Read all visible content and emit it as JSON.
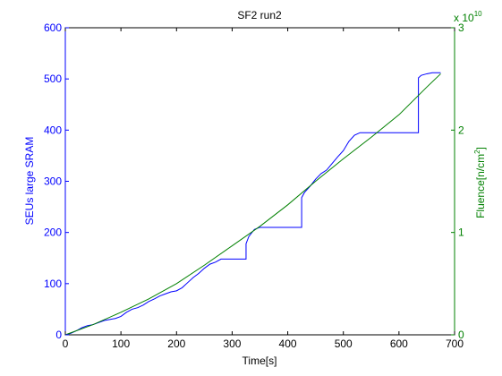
{
  "chart_data": {
    "type": "line",
    "title": "SF2 run2",
    "xlabel": "Time[s]",
    "ylabel": "SEUs large SRAM",
    "y2label_main": "Fluence[n/cm",
    "y2label_sup": "2",
    "y2label_end": "]",
    "y2_multiplier_base": "x 10",
    "y2_multiplier_exp": "10",
    "xlim": [
      0,
      700
    ],
    "ylim": [
      0,
      600
    ],
    "y2lim": [
      0,
      3
    ],
    "x_ticks": [
      0,
      100,
      200,
      300,
      400,
      500,
      600,
      700
    ],
    "x_tick_labels": [
      "0",
      "100",
      "200",
      "300",
      "400",
      "500",
      "600",
      "700"
    ],
    "y_ticks": [
      0,
      100,
      200,
      300,
      400,
      500,
      600
    ],
    "y_tick_labels": [
      "0",
      "100",
      "200",
      "300",
      "400",
      "500",
      "600"
    ],
    "y2_ticks": [
      0,
      1,
      2,
      3
    ],
    "y2_tick_labels": [
      "0",
      "1",
      "2",
      "3"
    ],
    "colors": {
      "left_axis": "#0000ff",
      "right_axis": "#008000",
      "box": "#000000"
    },
    "series": [
      {
        "name": "SEUs large SRAM",
        "axis": "left",
        "color": "#0000ff",
        "x": [
          0,
          10,
          20,
          30,
          40,
          50,
          60,
          70,
          80,
          90,
          100,
          110,
          120,
          130,
          140,
          150,
          160,
          170,
          180,
          190,
          200,
          210,
          220,
          230,
          240,
          250,
          260,
          270,
          280,
          290,
          300,
          310,
          320,
          325,
          325,
          330,
          340,
          350,
          360,
          370,
          380,
          390,
          400,
          410,
          420,
          425,
          425,
          430,
          440,
          450,
          460,
          470,
          480,
          490,
          500,
          510,
          520,
          530,
          540,
          550,
          560,
          570,
          580,
          590,
          600,
          610,
          620,
          630,
          635,
          635,
          640,
          650,
          660,
          670,
          675
        ],
        "y": [
          0,
          3,
          8,
          14,
          18,
          20,
          24,
          28,
          30,
          32,
          36,
          44,
          50,
          53,
          58,
          65,
          70,
          76,
          80,
          84,
          86,
          92,
          102,
          112,
          120,
          130,
          138,
          142,
          148,
          148,
          148,
          148,
          148,
          148,
          178,
          192,
          206,
          210,
          210,
          210,
          210,
          210,
          210,
          210,
          210,
          210,
          268,
          278,
          290,
          304,
          315,
          322,
          335,
          348,
          360,
          378,
          390,
          395,
          395,
          395,
          395,
          395,
          395,
          395,
          395,
          395,
          395,
          395,
          395,
          502,
          507,
          510,
          512,
          512,
          512
        ]
      },
      {
        "name": "Fluence",
        "axis": "right",
        "color": "#008000",
        "x": [
          0,
          50,
          100,
          150,
          200,
          250,
          300,
          350,
          400,
          450,
          500,
          550,
          600,
          650,
          675
        ],
        "y": [
          0,
          0.1,
          0.22,
          0.35,
          0.5,
          0.68,
          0.87,
          1.06,
          1.27,
          1.5,
          1.72,
          1.93,
          2.15,
          2.42,
          2.55
        ]
      }
    ]
  }
}
